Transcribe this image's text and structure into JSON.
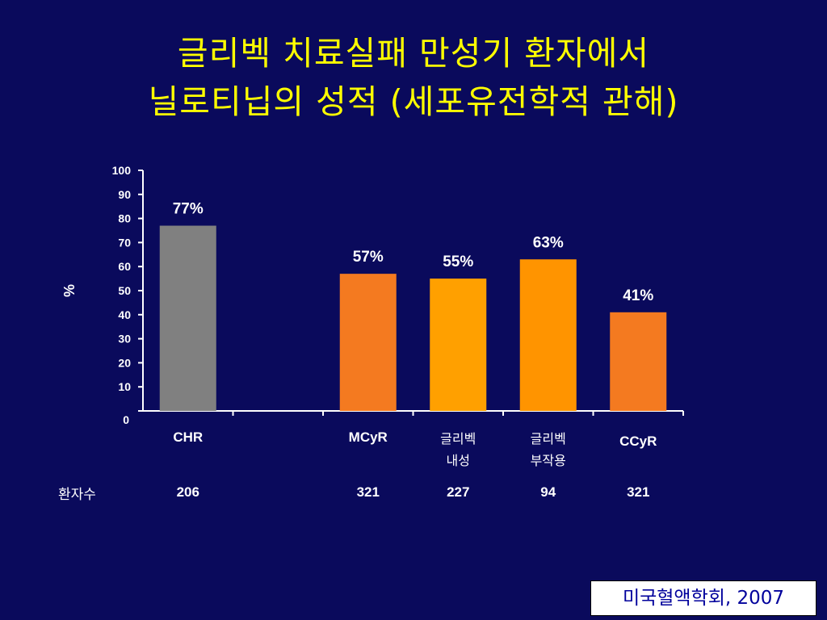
{
  "slide": {
    "title_line1": "글리벡 치료실패 만성기 환자에서",
    "title_line2": "닐로티닙의 성적 (세포유전학적 관해)",
    "source": "미국혈액학회, 2007",
    "row_label": "환자수"
  },
  "chart_data": {
    "type": "bar",
    "ylabel": "%",
    "ylim": [
      0,
      100
    ],
    "yticks": [
      0,
      10,
      20,
      30,
      40,
      50,
      60,
      70,
      80,
      90,
      100
    ],
    "categories": [
      "CHR",
      "",
      "MCyR",
      "글리벡\n내성",
      "글리벡\n부작용",
      "CCyR"
    ],
    "values": [
      77,
      null,
      57,
      55,
      63,
      41
    ],
    "data_labels": [
      "77%",
      "",
      "57%",
      "55%",
      "63%",
      "41%"
    ],
    "patient_counts": [
      "206",
      "",
      "321",
      "227",
      "94",
      "321"
    ],
    "colors": [
      "#808080",
      null,
      "#f47a20",
      "#ffa000",
      "#ff9400",
      "#f47a20"
    ],
    "grid": false
  }
}
